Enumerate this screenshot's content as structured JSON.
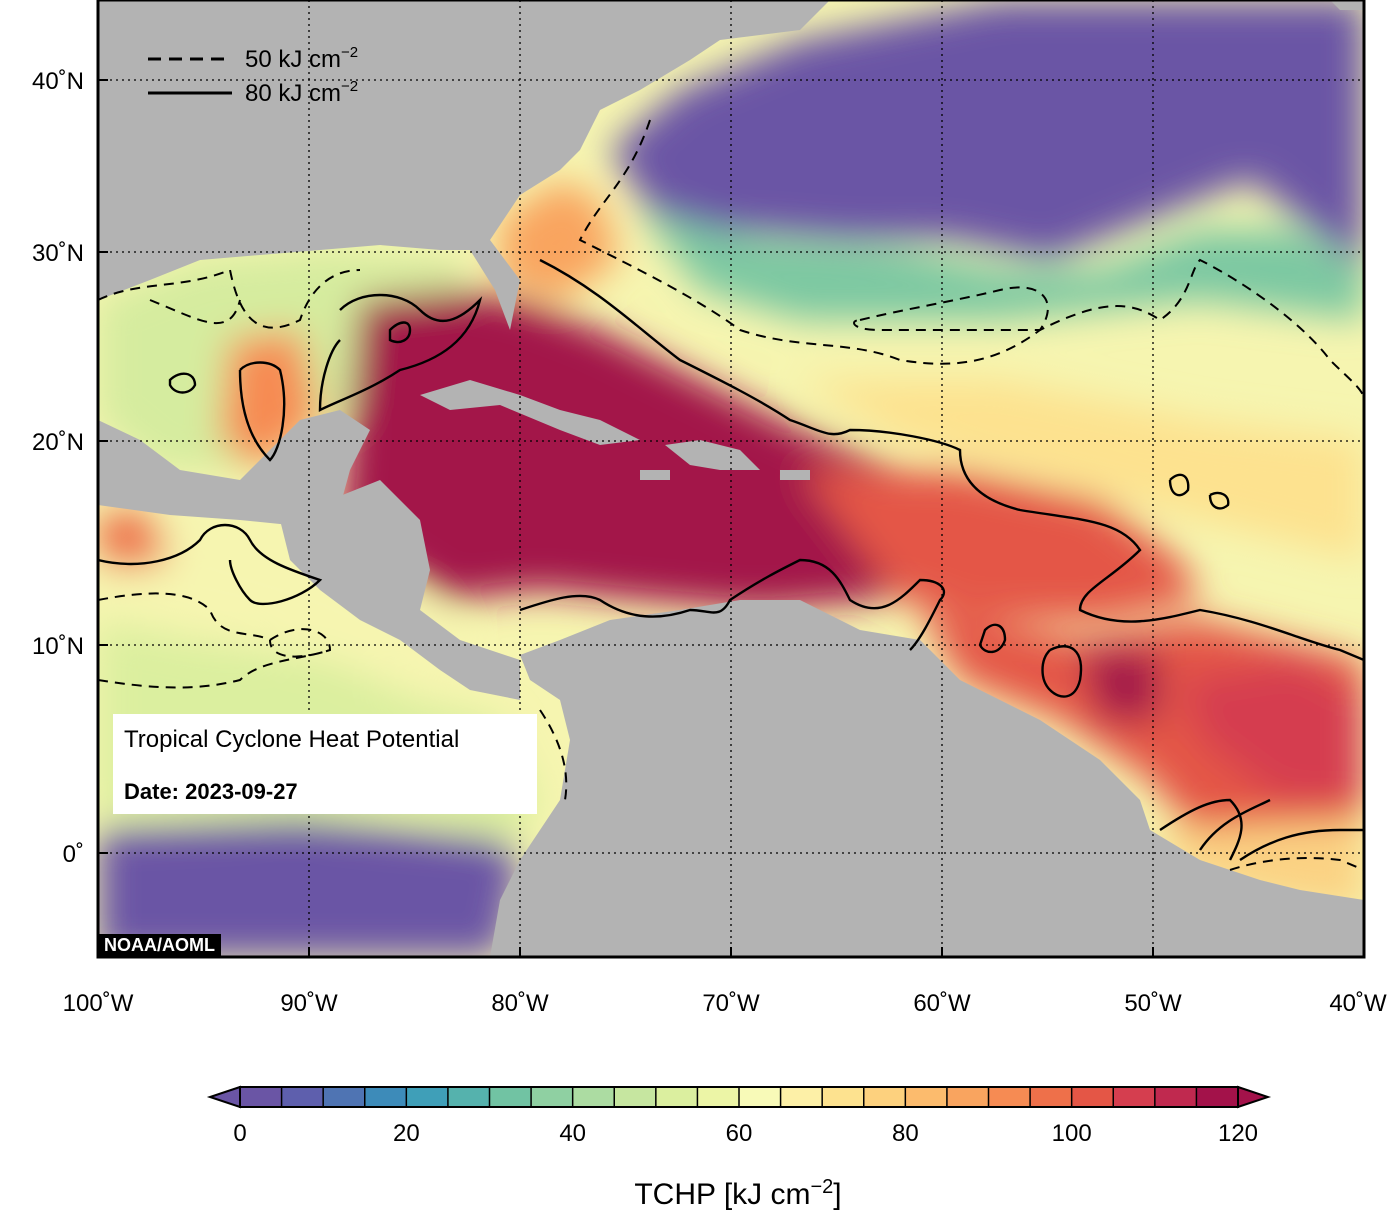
{
  "map": {
    "title": "Tropical Cyclone Heat Potential",
    "date_label": "Date: 2023-09-27",
    "credit": "NOAA/AOML",
    "lat_labels": [
      "40˚N",
      "30˚N",
      "20˚N",
      "10˚N",
      "0˚"
    ],
    "lon_labels": [
      "100˚W",
      "90˚W",
      "80˚W",
      "70˚W",
      "60˚W",
      "50˚W",
      "40˚W"
    ],
    "contour_legend": [
      {
        "style": "dashed",
        "value": "50 kJ cm",
        "exp": "−2"
      },
      {
        "style": "solid",
        "value": "80 kJ cm",
        "exp": "−2"
      }
    ],
    "colors": {
      "land": "#b3b3b3",
      "cold": "#6a55a5",
      "hot": "#a3124a"
    }
  },
  "colorbar": {
    "title": "TCHP [kJ cm",
    "title_exp": "−2",
    "title_end": "]",
    "ticks": [
      "0",
      "20",
      "40",
      "60",
      "80",
      "100",
      "120"
    ],
    "range": [
      0,
      120
    ],
    "step": 5,
    "colors": [
      "#6a55a5",
      "#5e5fad",
      "#4f74b3",
      "#3d8bb9",
      "#3f9fb8",
      "#55b2ad",
      "#71c3a3",
      "#8fd0a2",
      "#acdca2",
      "#c6e6a0",
      "#dbef9f",
      "#ecf5a6",
      "#f8fab8",
      "#fdf0a7",
      "#fde28f",
      "#fdd17e",
      "#fcbb6d",
      "#f9a45f",
      "#f68b53",
      "#ee704a",
      "#e45646",
      "#d53e4f",
      "#c0294f",
      "#a3124a"
    ]
  }
}
